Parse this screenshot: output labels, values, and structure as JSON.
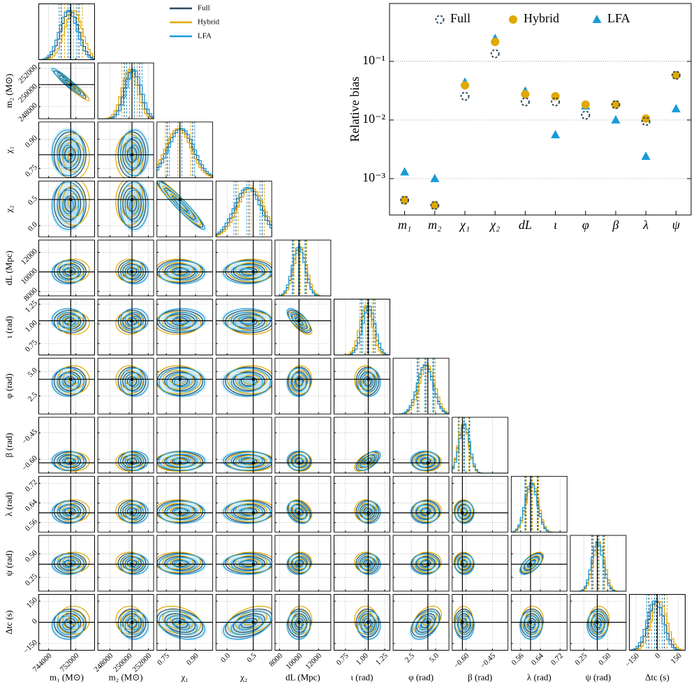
{
  "chart_data": [
    {
      "type": "corner",
      "grid": true,
      "series": [
        {
          "name": "Full",
          "color": "#2e4a5f",
          "medians": [
            750300,
            250300,
            0.82,
            0.42,
            10050,
            1.03,
            4.0,
            -0.612,
            0.605,
            0.4,
            -5
          ],
          "widths": [
            2600,
            800,
            0.065,
            0.25,
            650,
            0.08,
            0.8,
            0.03,
            0.025,
            0.06,
            55
          ]
        },
        {
          "name": "Hybrid",
          "color": "#e0a800",
          "medians": [
            751300,
            250050,
            0.81,
            0.46,
            10150,
            1.01,
            4.15,
            -0.614,
            0.608,
            0.41,
            15
          ],
          "widths": [
            2600,
            800,
            0.065,
            0.25,
            650,
            0.08,
            0.8,
            0.03,
            0.025,
            0.06,
            55
          ]
        },
        {
          "name": "LFA",
          "color": "#1a9ad8",
          "medians": [
            749700,
            250550,
            0.83,
            0.38,
            9950,
            1.05,
            3.9,
            -0.608,
            0.602,
            0.39,
            -20
          ],
          "widths": [
            2600,
            800,
            0.065,
            0.25,
            650,
            0.08,
            0.8,
            0.03,
            0.025,
            0.06,
            55
          ]
        }
      ],
      "parameters": [
        {
          "label": "m₁ (M⊙)",
          "lim": [
            741000,
            757600
          ],
          "ticks": [
            744000,
            752000
          ]
        },
        {
          "label": "m₂ (M⊙)",
          "lim": [
            246700,
            252600
          ],
          "ticks": [
            248000,
            250000,
            252000
          ]
        },
        {
          "label": "χ₁",
          "lim": [
            0.7,
            0.99
          ],
          "ticks": [
            0.75,
            {
              "value": 0.9,
              "label": "0.90"
            }
          ]
        },
        {
          "label": "χ₂",
          "lim": [
            -0.22,
            0.86
          ],
          "ticks": [
            {
              "value": 0,
              "label": "0.0"
            },
            0.5
          ]
        },
        {
          "label": "dL (Mpc)",
          "lim": [
            7500,
            13300
          ],
          "ticks": [
            8000,
            10000,
            12000
          ]
        },
        {
          "label": "ι (rad)",
          "lim": [
            0.6,
            1.32
          ],
          "ticks": [
            0.75,
            {
              "value": 1,
              "label": "1.00"
            },
            1.25
          ]
        },
        {
          "label": "φ (rad)",
          "lim": [
            0.6,
            6.4
          ],
          "ticks": [
            2.5,
            {
              "value": 5,
              "label": "5.0"
            }
          ]
        },
        {
          "label": "β (rad)",
          "lim": [
            -0.68,
            -0.36
          ],
          "ticks": [
            {
              "value": -0.6,
              "label": "−0.60"
            },
            {
              "value": -0.45,
              "label": "−0.45"
            }
          ]
        },
        {
          "label": "λ (rad)",
          "lim": [
            0.52,
            0.75
          ],
          "ticks": [
            0.56,
            0.64,
            0.72
          ]
        },
        {
          "label": "ψ (rad)",
          "lim": [
            0.1,
            0.7
          ],
          "ticks": [
            0.25,
            {
              "value": 0.5,
              "label": "0.50"
            }
          ]
        },
        {
          "label": "Δtc (s)",
          "lim": [
            -200,
            200
          ],
          "ticks": [
            {
              "value": -150,
              "label": "−150"
            },
            0,
            150
          ]
        }
      ],
      "truths": [
        750500,
        250300,
        0.82,
        0.5,
        10000,
        1.04,
        4.2,
        -0.62,
        0.6,
        0.39,
        0
      ],
      "correlations": [
        {
          "params": [
            0,
            1
          ],
          "value": -0.95
        },
        {
          "params": [
            2,
            3
          ],
          "value": -0.95
        },
        {
          "params": [
            4,
            5
          ],
          "value": -0.7
        },
        {
          "params": [
            5,
            7
          ],
          "value": 0.6
        },
        {
          "params": [
            8,
            9
          ],
          "value": 0.6
        },
        {
          "params": [
            4,
            8
          ],
          "value": -0.3
        },
        {
          "params": [
            2,
            10
          ],
          "value": -0.3
        },
        {
          "params": [
            3,
            10
          ],
          "value": 0.4
        },
        {
          "params": [
            6,
            10
          ],
          "value": 0.4
        }
      ]
    },
    {
      "type": "scatter",
      "ylabel": "Relative bias",
      "log_y": true,
      "grid": true,
      "legend": "upper center",
      "categories": [
        "m₁",
        "m₂",
        "χ₁",
        "χ₂",
        "dL",
        "ι",
        "φ",
        "β",
        "λ",
        "ψ"
      ],
      "ylim": [
        0.00024,
        0.97
      ],
      "yticks": [
        {
          "value": 0.001,
          "label": "10⁻³"
        },
        {
          "value": 0.01,
          "label": "10⁻²"
        },
        {
          "value": 0.1,
          "label": "10⁻¹"
        }
      ],
      "series": [
        {
          "name": "Full",
          "color": "#2e4a5f",
          "marker": "dashed-circle",
          "values": [
            0.00043,
            0.00035,
            0.0254,
            0.135,
            0.0204,
            0.0204,
            0.0121,
            0.0183,
            0.0095,
            0.058
          ]
        },
        {
          "name": "Hybrid",
          "color": "#e0a800",
          "marker": "circle",
          "values": [
            0.00043,
            0.00035,
            0.039,
            0.215,
            0.0275,
            0.0254,
            0.0183,
            0.0183,
            0.0106,
            0.058
          ]
        },
        {
          "name": "LFA",
          "color": "#1a9ad8",
          "marker": "triangle",
          "values": [
            0.0013,
            0.001,
            0.044,
            0.245,
            0.031,
            0.0056,
            0.0173,
            0.01,
            0.0024,
            0.0155
          ]
        }
      ]
    }
  ]
}
